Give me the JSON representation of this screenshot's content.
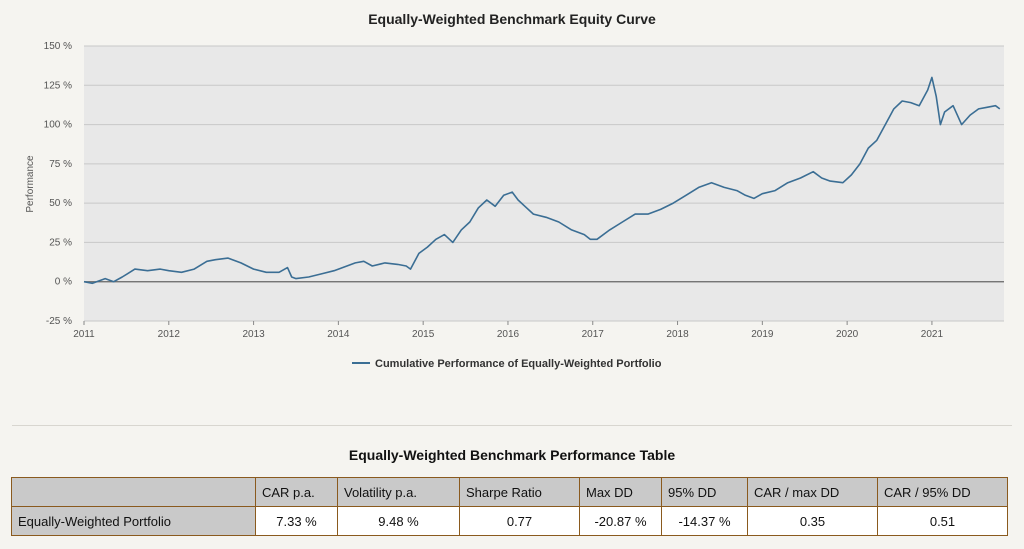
{
  "chart_data": {
    "type": "line",
    "title": "Equally-Weighted Benchmark Equity Curve",
    "ylabel": "Performance",
    "xlabel": "",
    "xlim": [
      2011.0,
      2021.85
    ],
    "ylim": [
      -25,
      150
    ],
    "x_ticks": [
      "2011",
      "2012",
      "2013",
      "2014",
      "2015",
      "2016",
      "2017",
      "2018",
      "2019",
      "2020",
      "2021"
    ],
    "y_ticks": [
      "-25 %",
      "0 %",
      "25 %",
      "50 %",
      "75 %",
      "100 %",
      "125 %",
      "150 %"
    ],
    "y_tick_values": [
      -25,
      0,
      25,
      50,
      75,
      100,
      125,
      150
    ],
    "legend_position": "bottom-center",
    "grid": true,
    "colors": {
      "line": "#3b6e94",
      "plot_bg": "#e8e8e8",
      "zero_line": "#666666"
    },
    "series": [
      {
        "name": "Cumulative Performance of Equally-Weighted Portfolio",
        "x": [
          2011.0,
          2011.1,
          2011.25,
          2011.35,
          2011.45,
          2011.6,
          2011.75,
          2011.9,
          2012.0,
          2012.15,
          2012.3,
          2012.45,
          2012.55,
          2012.7,
          2012.85,
          2013.0,
          2013.15,
          2013.3,
          2013.4,
          2013.45,
          2013.5,
          2013.65,
          2013.8,
          2013.95,
          2014.1,
          2014.2,
          2014.3,
          2014.4,
          2014.55,
          2014.7,
          2014.8,
          2014.85,
          2014.95,
          2015.05,
          2015.15,
          2015.25,
          2015.35,
          2015.45,
          2015.55,
          2015.65,
          2015.75,
          2015.85,
          2015.95,
          2016.05,
          2016.12,
          2016.2,
          2016.3,
          2016.45,
          2016.6,
          2016.75,
          2016.9,
          2016.97,
          2017.05,
          2017.2,
          2017.35,
          2017.5,
          2017.65,
          2017.8,
          2017.95,
          2018.1,
          2018.25,
          2018.4,
          2018.55,
          2018.7,
          2018.8,
          2018.9,
          2019.0,
          2019.15,
          2019.3,
          2019.45,
          2019.6,
          2019.7,
          2019.8,
          2019.95,
          2020.05,
          2020.15,
          2020.25,
          2020.35,
          2020.45,
          2020.55,
          2020.65,
          2020.75,
          2020.85,
          2020.95,
          2021.0,
          2021.05,
          2021.1,
          2021.15,
          2021.25,
          2021.35,
          2021.45,
          2021.55,
          2021.65,
          2021.75,
          2021.8
        ],
        "values": [
          0,
          -1,
          2,
          0,
          3,
          8,
          7,
          8,
          7,
          6,
          8,
          13,
          14,
          15,
          12,
          8,
          6,
          6,
          9,
          3,
          2,
          3,
          5,
          7,
          10,
          12,
          13,
          10,
          12,
          11,
          10,
          8,
          18,
          22,
          27,
          30,
          25,
          33,
          38,
          47,
          52,
          48,
          55,
          57,
          52,
          48,
          43,
          41,
          38,
          33,
          30,
          27,
          27,
          33,
          38,
          43,
          43,
          46,
          50,
          55,
          60,
          63,
          60,
          58,
          55,
          53,
          56,
          58,
          63,
          66,
          70,
          66,
          64,
          63,
          68,
          75,
          85,
          90,
          100,
          110,
          115,
          114,
          112,
          122,
          130,
          118,
          100,
          108,
          112,
          100,
          106,
          110,
          111,
          112,
          110
        ]
      }
    ]
  },
  "table": {
    "title": "Equally-Weighted Benchmark Performance Table",
    "headers": [
      "",
      "CAR p.a.",
      "Volatility p.a.",
      "Sharpe Ratio",
      "Max DD",
      "95% DD",
      "CAR / max DD",
      "CAR / 95% DD"
    ],
    "rows": [
      {
        "label": "Equally-Weighted Portfolio",
        "cells": [
          "7.33 %",
          "9.48 %",
          "0.77",
          "-20.87 %",
          "-14.37 %",
          "0.35",
          "0.51"
        ]
      }
    ],
    "colors": {
      "border": "#8a5a1e",
      "header_bg": "#c9c9c9"
    }
  }
}
